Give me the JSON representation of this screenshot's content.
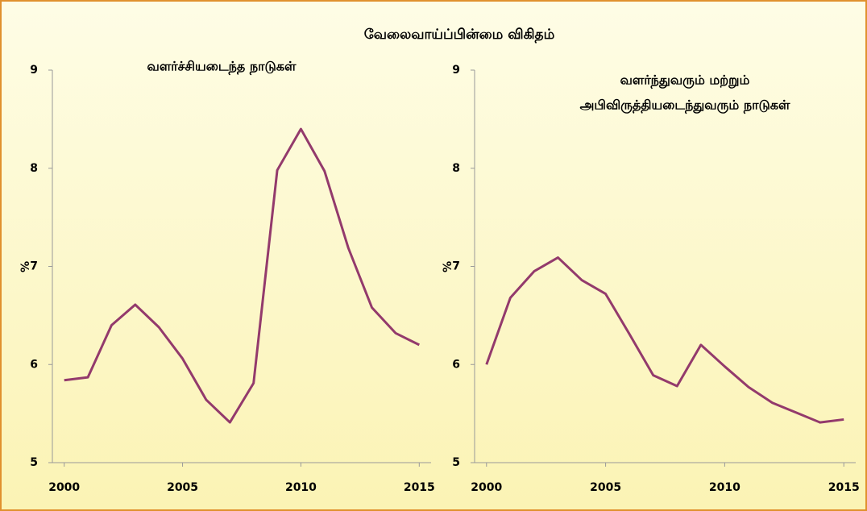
{
  "title": "வேலைவாய்ப்பின்மை விகிதம்",
  "chart_data": [
    {
      "type": "line",
      "title": [
        "வளர்ச்சியடைந்த நாடுகள்"
      ],
      "ylabel": "%",
      "x": [
        2000,
        2001,
        2002,
        2003,
        2004,
        2005,
        2006,
        2007,
        2008,
        2009,
        2010,
        2011,
        2012,
        2013,
        2014,
        2015
      ],
      "series": [
        {
          "color": "#933a6c",
          "values": [
            5.84,
            5.87,
            6.4,
            6.61,
            6.38,
            6.06,
            5.64,
            5.41,
            5.81,
            7.98,
            8.4,
            7.97,
            7.19,
            6.58,
            6.32,
            6.2
          ]
        }
      ],
      "xlim": [
        1999.5,
        2015.5
      ],
      "xticks": [
        2000,
        2005,
        2010,
        2015
      ],
      "ylim": [
        5,
        9
      ],
      "yticks": [
        5,
        6,
        7,
        8,
        9
      ],
      "grid": false
    },
    {
      "type": "line",
      "title": [
        "வளர்ந்துவரும் மற்றும்",
        "அபிவிருத்தியடைந்துவரும் நாடுகள்"
      ],
      "ylabel": "%",
      "x": [
        2000,
        2001,
        2002,
        2003,
        2004,
        2005,
        2006,
        2007,
        2008,
        2009,
        2010,
        2011,
        2012,
        2013,
        2014,
        2015
      ],
      "series": [
        {
          "color": "#933a6c",
          "values": [
            6.0,
            6.68,
            6.95,
            7.09,
            6.86,
            6.72,
            6.31,
            5.89,
            5.78,
            6.2,
            5.98,
            5.77,
            5.61,
            5.51,
            5.41,
            5.44
          ]
        }
      ],
      "xlim": [
        1999.5,
        2015.5
      ],
      "xticks": [
        2000,
        2005,
        2010,
        2015
      ],
      "ylim": [
        5,
        9
      ],
      "yticks": [
        5,
        6,
        7,
        8,
        9
      ],
      "grid": false
    }
  ]
}
